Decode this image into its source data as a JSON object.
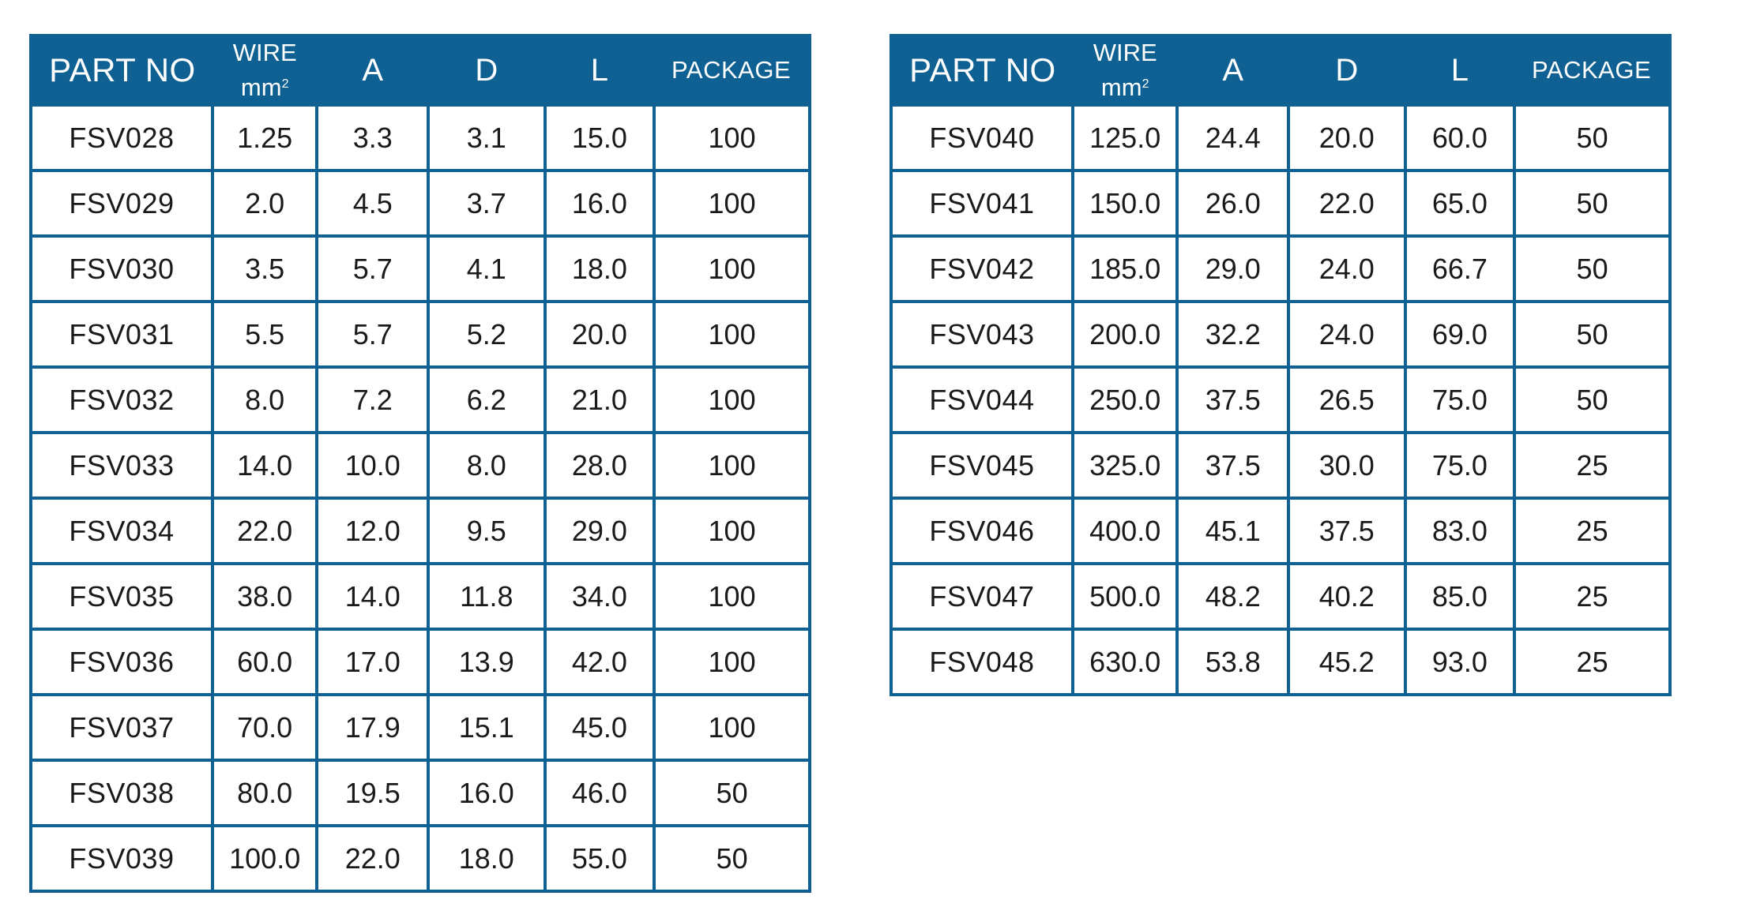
{
  "headers": {
    "part_no": "PART NO",
    "wire_top": "WIRE",
    "wire_unit": "mm",
    "wire_unit_sup": "2",
    "a": "A",
    "d": "D",
    "l": "L",
    "package": "PACKAGE"
  },
  "tables": [
    {
      "rows": [
        [
          "FSV028",
          "1.25",
          "3.3",
          "3.1",
          "15.0",
          "100"
        ],
        [
          "FSV029",
          "2.0",
          "4.5",
          "3.7",
          "16.0",
          "100"
        ],
        [
          "FSV030",
          "3.5",
          "5.7",
          "4.1",
          "18.0",
          "100"
        ],
        [
          "FSV031",
          "5.5",
          "5.7",
          "5.2",
          "20.0",
          "100"
        ],
        [
          "FSV032",
          "8.0",
          "7.2",
          "6.2",
          "21.0",
          "100"
        ],
        [
          "FSV033",
          "14.0",
          "10.0",
          "8.0",
          "28.0",
          "100"
        ],
        [
          "FSV034",
          "22.0",
          "12.0",
          "9.5",
          "29.0",
          "100"
        ],
        [
          "FSV035",
          "38.0",
          "14.0",
          "11.8",
          "34.0",
          "100"
        ],
        [
          "FSV036",
          "60.0",
          "17.0",
          "13.9",
          "42.0",
          "100"
        ],
        [
          "FSV037",
          "70.0",
          "17.9",
          "15.1",
          "45.0",
          "100"
        ],
        [
          "FSV038",
          "80.0",
          "19.5",
          "16.0",
          "46.0",
          "50"
        ],
        [
          "FSV039",
          "100.0",
          "22.0",
          "18.0",
          "55.0",
          "50"
        ]
      ]
    },
    {
      "rows": [
        [
          "FSV040",
          "125.0",
          "24.4",
          "20.0",
          "60.0",
          "50"
        ],
        [
          "FSV041",
          "150.0",
          "26.0",
          "22.0",
          "65.0",
          "50"
        ],
        [
          "FSV042",
          "185.0",
          "29.0",
          "24.0",
          "66.7",
          "50"
        ],
        [
          "FSV043",
          "200.0",
          "32.2",
          "24.0",
          "69.0",
          "50"
        ],
        [
          "FSV044",
          "250.0",
          "37.5",
          "26.5",
          "75.0",
          "50"
        ],
        [
          "FSV045",
          "325.0",
          "37.5",
          "30.0",
          "75.0",
          "25"
        ],
        [
          "FSV046",
          "400.0",
          "45.1",
          "37.5",
          "83.0",
          "25"
        ],
        [
          "FSV047",
          "500.0",
          "48.2",
          "40.2",
          "85.0",
          "25"
        ],
        [
          "FSV048",
          "630.0",
          "53.8",
          "45.2",
          "93.0",
          "25"
        ]
      ]
    }
  ],
  "colors": {
    "header_bg": "#0e6192",
    "border": "#0e6192",
    "header_text": "#ffffff",
    "cell_text": "#1a1a1a"
  }
}
